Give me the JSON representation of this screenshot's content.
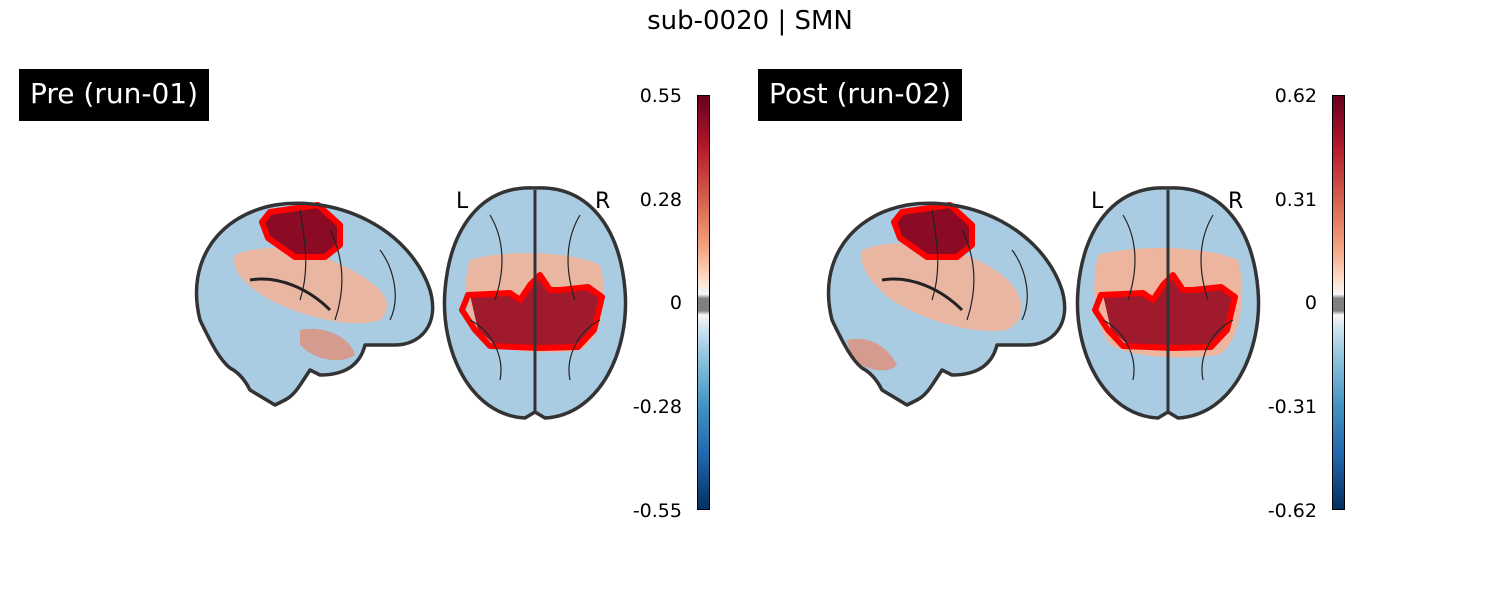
{
  "figure": {
    "title": "sub-0020 | SMN"
  },
  "panels": [
    {
      "label": "Pre (run-01)",
      "hemisphere_left": "L",
      "hemisphere_right": "R",
      "colorbar": {
        "ticks": [
          "0.55",
          "0.28",
          "0",
          "-0.28",
          "-0.55"
        ],
        "vmin": -0.55,
        "vmax": 0.55,
        "colormap": "RdBu_r"
      },
      "overlay_outline_color": "#ff0000"
    },
    {
      "label": "Post (run-02)",
      "hemisphere_left": "L",
      "hemisphere_right": "R",
      "colorbar": {
        "ticks": [
          "0.62",
          "0.31",
          "0",
          "-0.31",
          "-0.62"
        ],
        "vmin": -0.62,
        "vmax": 0.62,
        "colormap": "RdBu_r"
      },
      "overlay_outline_color": "#ff0000"
    }
  ]
}
